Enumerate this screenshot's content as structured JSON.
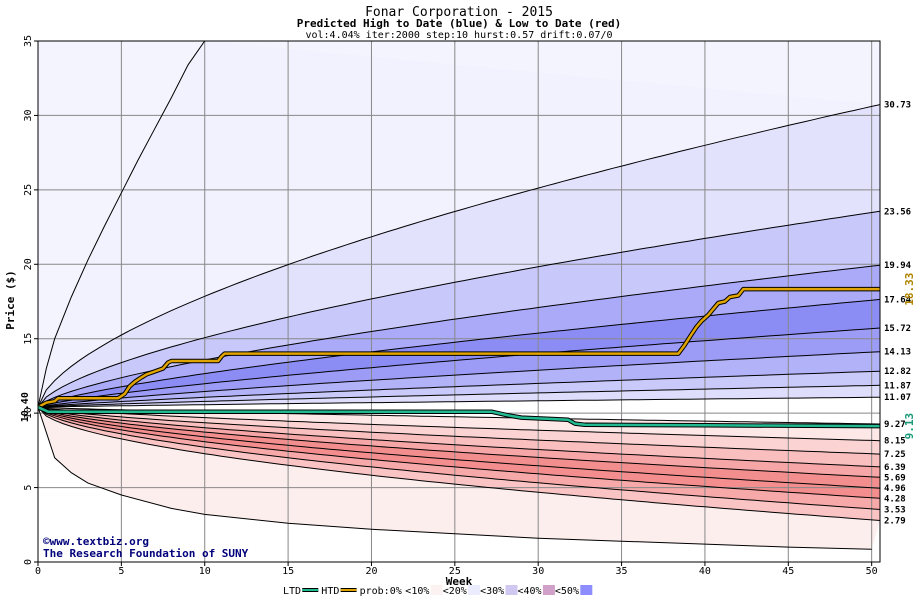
{
  "chart_data": {
    "type": "area",
    "title": "Fonar Corporation - 2015",
    "subtitle": "Predicted High to Date (blue) &  Low to Date (red)",
    "params": "vol:4.04% iter:2000 step:10 hurst:0.57 drift:0.07/0",
    "xlabel": "Week",
    "ylabel": "Price ($)",
    "xlim": [
      0,
      50.5
    ],
    "ylim": [
      0,
      35
    ],
    "xticks": [
      0,
      5,
      10,
      15,
      20,
      25,
      30,
      35,
      40,
      45,
      50
    ],
    "yticks": [
      0,
      5,
      10,
      15,
      20,
      25,
      30,
      35
    ],
    "grid": true,
    "start_price": 10.4,
    "start_label": "10.40",
    "colors": {
      "htd_line": "#e0a400",
      "ltd_line": "#22b890",
      "grid": "#888888",
      "lines": "#000000"
    },
    "credits": {
      "line1": "www.textbiz.org",
      "line2": "The Research Foundation of SUNY"
    },
    "legend": {
      "items": [
        {
          "label": "LTD",
          "swatch": "line",
          "color": "#22b890"
        },
        {
          "label": "HTD",
          "swatch": "line",
          "color": "#e0a400"
        },
        {
          "label": "prob:0%",
          "swatch": "none",
          "color": ""
        },
        {
          "label": "<10%",
          "swatch": "fill",
          "color": "#fdf2f2"
        },
        {
          "label": "<20%",
          "swatch": "fill",
          "color": "#ececff"
        },
        {
          "label": "<30%",
          "swatch": "fill",
          "color": "#d0c8f0"
        },
        {
          "label": "<40%",
          "swatch": "fill",
          "color": "#d0a0c8"
        },
        {
          "label": "<50%",
          "swatch": "fill",
          "color": "#8d8dff"
        }
      ]
    },
    "upper_bands": [
      {
        "label": "30.73",
        "end": 30.73,
        "shape": 0.62
      },
      {
        "label": "23.56",
        "end": 23.56,
        "shape": 0.64
      },
      {
        "label": "19.94",
        "end": 19.94,
        "shape": 0.68
      },
      {
        "label": "17.64",
        "end": 17.64,
        "shape": 0.72
      },
      {
        "label": "15.72",
        "end": 15.72,
        "shape": 0.75
      },
      {
        "label": "14.13",
        "end": 14.13,
        "shape": 0.78
      },
      {
        "label": "12.82",
        "end": 12.82,
        "shape": 0.8
      },
      {
        "label": "11.87",
        "end": 11.87,
        "shape": 0.82
      },
      {
        "label": "11.07",
        "end": 11.07,
        "shape": 0.85
      }
    ],
    "upper_fills": [
      "#f4f4ff",
      "#e2e2fd",
      "#c8c8fb",
      "#aaaaf8",
      "#8c8cf5",
      "#9c9cf6",
      "#b2b2f8",
      "#c9c9fa",
      "#dedefc"
    ],
    "lower_bands": [
      {
        "label": "9.27",
        "end": 9.27,
        "shape": 0.8
      },
      {
        "label": "8.15",
        "end": 8.15,
        "shape": 0.72
      },
      {
        "label": "7.25",
        "end": 7.25,
        "shape": 0.68
      },
      {
        "label": "6.39",
        "end": 6.39,
        "shape": 0.66
      },
      {
        "label": "5.69",
        "end": 5.69,
        "shape": 0.64
      },
      {
        "label": "4.96",
        "end": 4.96,
        "shape": 0.62
      },
      {
        "label": "4.28",
        "end": 4.28,
        "shape": 0.6
      },
      {
        "label": "3.53",
        "end": 3.53,
        "shape": 0.58
      },
      {
        "label": "2.79",
        "end": 2.79,
        "shape": 0.55
      }
    ],
    "lower_fills": [
      "#fde7e7",
      "#fbd3d3",
      "#f9bebe",
      "#f6a6a6",
      "#f38e8e",
      "#f48e8e",
      "#f7a8a8",
      "#fac4c4",
      "#fcdcdc"
    ],
    "outer_upper": {
      "x": [
        0,
        0.5,
        1,
        2,
        3,
        4,
        5,
        6,
        7,
        8,
        9,
        10
      ],
      "y": [
        10.4,
        13,
        15,
        17.8,
        20.3,
        22.6,
        24.8,
        27,
        29.1,
        31.2,
        33.4,
        35
      ]
    },
    "outer_lower": {
      "x": [
        0,
        1,
        2,
        3,
        5,
        8,
        10,
        15,
        20,
        25,
        30,
        35,
        40,
        45,
        50
      ],
      "y": [
        10.4,
        7,
        6,
        5.3,
        4.5,
        3.6,
        3.2,
        2.6,
        2.2,
        1.9,
        1.6,
        1.4,
        1.2,
        1.0,
        0.85
      ]
    },
    "htd": {
      "x": [
        0,
        0.5,
        1,
        1.2,
        4.8,
        5.2,
        5.5,
        5.8,
        6.2,
        6.5,
        7.0,
        7.5,
        7.8,
        8.0,
        10.8,
        11.0,
        11.2,
        38.4,
        38.8,
        39.2,
        39.5,
        39.8,
        40.2,
        40.5,
        40.8,
        41.2,
        41.5,
        42.0,
        42.3,
        50.5
      ],
      "y": [
        10.4,
        10.7,
        10.8,
        11.0,
        11.0,
        11.3,
        11.8,
        12.1,
        12.4,
        12.6,
        12.8,
        13.0,
        13.4,
        13.5,
        13.5,
        13.8,
        14.0,
        14.0,
        14.6,
        15.3,
        15.8,
        16.2,
        16.6,
        17.0,
        17.4,
        17.5,
        17.8,
        17.9,
        18.33,
        18.33
      ],
      "label": "18.33"
    },
    "ltd": {
      "x": [
        0,
        0.4,
        0.6,
        27.2,
        27.8,
        28.2,
        29,
        30,
        31,
        31.8,
        32.2,
        32.8,
        40,
        50.5
      ],
      "y": [
        10.4,
        10.2,
        10.1,
        10.1,
        9.95,
        9.85,
        9.7,
        9.65,
        9.6,
        9.55,
        9.3,
        9.22,
        9.18,
        9.13
      ],
      "label": "9.13"
    }
  }
}
